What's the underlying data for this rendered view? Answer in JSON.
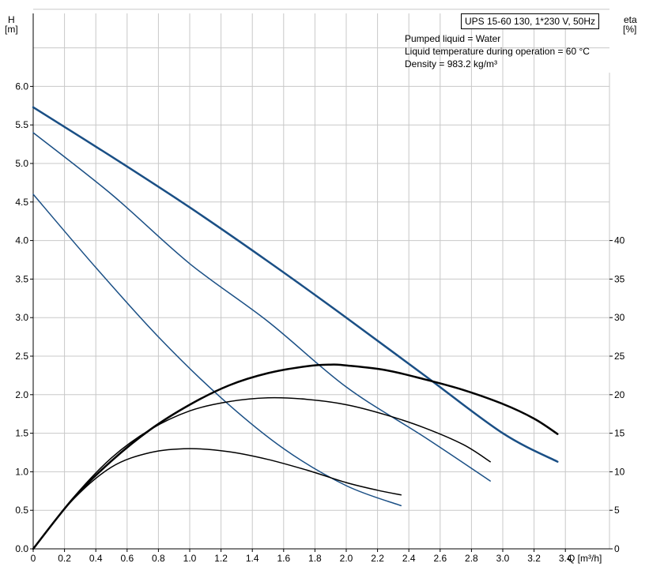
{
  "header": {
    "pump_title": "UPS 15-60 130, 1*230 V, 50Hz",
    "liquid": "Pumped liquid = Water",
    "temperature": "Liquid temperature during operation = 60 °C",
    "density": "Density = 983.2 kg/m³"
  },
  "axes": {
    "y_left_label": "H",
    "y_left_unit": "[m]",
    "y_right_label": "eta",
    "y_right_unit": "[%]",
    "x_label": "Q [m³/h]"
  },
  "chart_data": {
    "type": "line",
    "title": "UPS 15-60 130, 1*230 V, 50Hz",
    "xlabel": "Q [m³/h]",
    "ylabel": "H [m]",
    "y2label": "eta [%]",
    "xlim": [
      0,
      3.6
    ],
    "ylim": [
      0,
      6.0
    ],
    "y2lim": [
      0,
      40
    ],
    "grid": true,
    "x_ticks": [
      "0",
      "0.2",
      "0.4",
      "0.6",
      "0.8",
      "1.0",
      "1.2",
      "1.4",
      "1.6",
      "1.8",
      "2.0",
      "2.2",
      "2.4",
      "2.6",
      "2.8",
      "3.0",
      "3.2",
      "3.4"
    ],
    "y_ticks": [
      "0.0",
      "0.5",
      "1.0",
      "1.5",
      "2.0",
      "2.5",
      "3.0",
      "3.5",
      "4.0",
      "4.5",
      "5.0",
      "5.5",
      "6.0"
    ],
    "y2_ticks": [
      "0",
      "5",
      "10",
      "15",
      "20",
      "25",
      "30",
      "35",
      "40"
    ],
    "series": [
      {
        "axis": "H",
        "color": "#1a4f85",
        "width": 2.5,
        "x": [
          0,
          0.5,
          1.0,
          1.5,
          2.0,
          2.5,
          3.0,
          3.35
        ],
        "y": [
          5.73,
          5.09,
          4.43,
          3.73,
          3.0,
          2.25,
          1.5,
          1.13
        ]
      },
      {
        "axis": "H",
        "color": "#1a4f85",
        "width": 1.5,
        "x": [
          0,
          0.5,
          1.0,
          1.5,
          2.0,
          2.5,
          2.92
        ],
        "y": [
          5.4,
          4.6,
          3.7,
          2.95,
          2.1,
          1.45,
          0.88
        ]
      },
      {
        "axis": "H",
        "color": "#1a4f85",
        "width": 1.5,
        "x": [
          0,
          0.4,
          0.8,
          1.2,
          1.6,
          2.0,
          2.35
        ],
        "y": [
          4.6,
          3.65,
          2.75,
          1.96,
          1.3,
          0.82,
          0.56
        ]
      },
      {
        "axis": "eta",
        "color": "#000000",
        "width": 2.5,
        "x": [
          0,
          0.25,
          0.5,
          0.75,
          1.0,
          1.25,
          1.5,
          1.75,
          1.9,
          2.0,
          2.25,
          2.5,
          2.75,
          3.0,
          3.2,
          3.35
        ],
        "y": [
          0,
          6.4,
          11.4,
          15.5,
          18.7,
          21.2,
          22.8,
          23.7,
          23.9,
          23.8,
          23.2,
          22.0,
          20.6,
          18.8,
          16.9,
          14.9
        ]
      },
      {
        "axis": "eta",
        "color": "#000000",
        "width": 1.5,
        "x": [
          0,
          0.25,
          0.5,
          0.75,
          1.0,
          1.25,
          1.5,
          1.75,
          2.0,
          2.25,
          2.5,
          2.75,
          2.92
        ],
        "y": [
          0,
          6.5,
          11.8,
          15.5,
          17.9,
          19.1,
          19.6,
          19.4,
          18.7,
          17.4,
          15.7,
          13.5,
          11.3
        ]
      },
      {
        "axis": "eta",
        "color": "#000000",
        "width": 1.5,
        "x": [
          0,
          0.25,
          0.5,
          0.75,
          1.0,
          1.25,
          1.5,
          1.75,
          2.0,
          2.2,
          2.35
        ],
        "y": [
          0,
          6.3,
          10.6,
          12.5,
          13.0,
          12.6,
          11.6,
          10.2,
          8.6,
          7.6,
          7.0
        ]
      }
    ]
  }
}
